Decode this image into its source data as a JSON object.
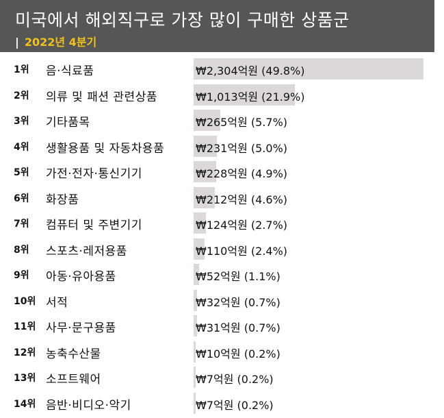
{
  "chart_data": {
    "type": "bar",
    "title": "미국에서 해외직구로 가장 많이 구매한 상품군",
    "subtitle_separator": "|",
    "subtitle": "2022년 4분기",
    "bar_color": "#dcd8d8",
    "header_color": "#565656",
    "subtitle_color": "#f1c21b",
    "rows": [
      {
        "rank": "1위",
        "category": "음·식료품",
        "value": 2304,
        "share": 49.8,
        "label": "₩2,304억원 (49.8%)"
      },
      {
        "rank": "2위",
        "category": "의류 및 패션 관련상품",
        "value": 1013,
        "share": 21.9,
        "label": "₩1,013억원 (21.9%)"
      },
      {
        "rank": "3위",
        "category": "기타품목",
        "value": 265,
        "share": 5.7,
        "label": "₩265억원 (5.7%)"
      },
      {
        "rank": "4위",
        "category": "생활용품 및 자동차용품",
        "value": 231,
        "share": 5.0,
        "label": "₩231억원 (5.0%)"
      },
      {
        "rank": "5위",
        "category": "가전·전자·통신기기",
        "value": 228,
        "share": 4.9,
        "label": "₩228억원 (4.9%)"
      },
      {
        "rank": "6위",
        "category": "화장품",
        "value": 212,
        "share": 4.6,
        "label": "₩212억원 (4.6%)"
      },
      {
        "rank": "7위",
        "category": "컴퓨터 및 주변기기",
        "value": 124,
        "share": 2.7,
        "label": "₩124억원 (2.7%)"
      },
      {
        "rank": "8위",
        "category": "스포츠·레저용품",
        "value": 110,
        "share": 2.4,
        "label": "₩110억원 (2.4%)"
      },
      {
        "rank": "9위",
        "category": "아동·유아용품",
        "value": 52,
        "share": 1.1,
        "label": "₩52억원 (1.1%)"
      },
      {
        "rank": "10위",
        "category": "서적",
        "value": 32,
        "share": 0.7,
        "label": "₩32억원 (0.7%)"
      },
      {
        "rank": "11위",
        "category": "사무·문구용품",
        "value": 31,
        "share": 0.7,
        "label": "₩31억원 (0.7%)"
      },
      {
        "rank": "12위",
        "category": "농축수산물",
        "value": 10,
        "share": 0.2,
        "label": "₩10억원 (0.2%)"
      },
      {
        "rank": "13위",
        "category": "소프트웨어",
        "value": 7,
        "share": 0.2,
        "label": "₩7억원 (0.2%)"
      },
      {
        "rank": "14위",
        "category": "음반·비디오·악기",
        "value": 7,
        "share": 0.2,
        "label": "₩7억원 (0.2%)"
      }
    ]
  }
}
